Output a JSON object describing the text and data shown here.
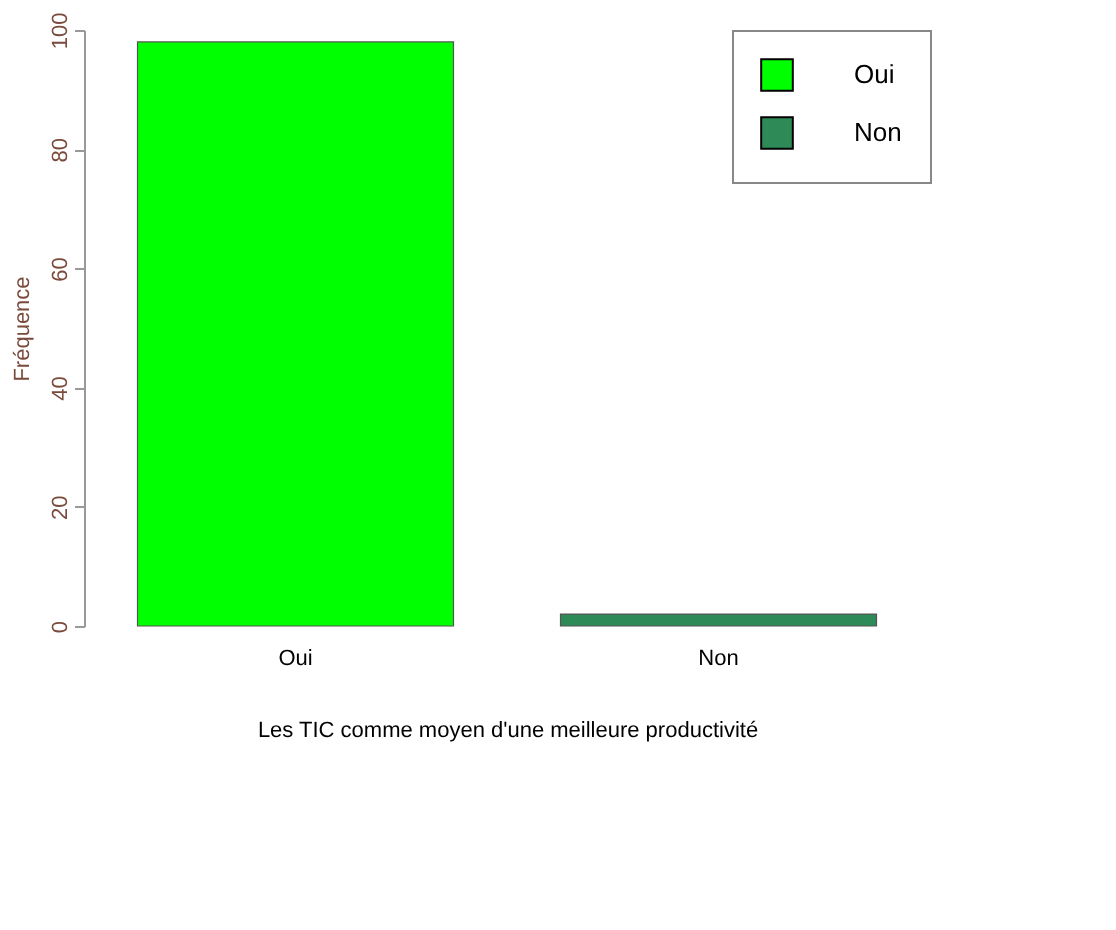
{
  "chart_data": {
    "type": "bar",
    "xlabel": "Les TIC  comme moyen  d'une meilleure productivité",
    "ylabel": "Fréquence",
    "categories": [
      "Oui",
      "Non"
    ],
    "series": [
      {
        "name": "Oui",
        "color": "#00ff00",
        "values": [
          98,
          null
        ]
      },
      {
        "name": "Non",
        "color": "#2e8b57",
        "values": [
          null,
          2
        ]
      }
    ],
    "ylim": [
      0,
      100
    ],
    "yticks": [
      0,
      20,
      40,
      60,
      80,
      100
    ],
    "grid": false,
    "legend": "top right"
  }
}
